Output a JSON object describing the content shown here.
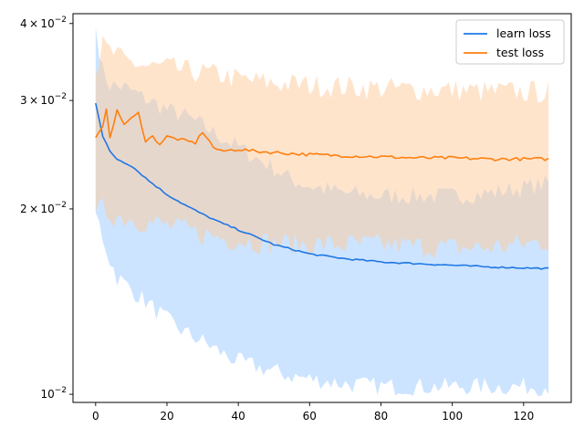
{
  "chart_data": {
    "type": "line",
    "title": "",
    "xlabel": "",
    "ylabel": "",
    "x_range": [
      0,
      127
    ],
    "xlim": [
      -6.35,
      133.35
    ],
    "ylim": [
      0.0097,
      0.0415
    ],
    "y_scale": "log",
    "grid": false,
    "legend_placement": "top-right",
    "x_ticks": [
      0,
      20,
      40,
      60,
      80,
      100,
      120
    ],
    "y_ticks": [
      {
        "value": 0.04,
        "mantissa": "4",
        "exponent": "−2"
      },
      {
        "value": 0.03,
        "mantissa": "3",
        "exponent": "−2"
      },
      {
        "value": 0.02,
        "mantissa": "2",
        "exponent": "−2"
      },
      {
        "value": 0.01,
        "mantissa": "",
        "exponent": "−2"
      }
    ],
    "tick_base": "10",
    "tick_times": "×",
    "series": [
      {
        "name": "learn loss",
        "color": "#1f77e4",
        "band_color": "#99c9ff",
        "mean_knots": [
          [
            0,
            0.0297
          ],
          [
            2,
            0.0262
          ],
          [
            4,
            0.0248
          ],
          [
            6,
            0.0241
          ],
          [
            10,
            0.0235
          ],
          [
            15,
            0.0222
          ],
          [
            20,
            0.0211
          ],
          [
            25,
            0.0203
          ],
          [
            30,
            0.0196
          ],
          [
            35,
            0.019
          ],
          [
            40,
            0.0185
          ],
          [
            45,
            0.018
          ],
          [
            50,
            0.0175
          ],
          [
            55,
            0.0172
          ],
          [
            60,
            0.0169
          ],
          [
            70,
            0.0166
          ],
          [
            80,
            0.0164
          ],
          [
            90,
            0.0163
          ],
          [
            100,
            0.0162
          ],
          [
            110,
            0.0161
          ],
          [
            127,
            0.016
          ]
        ],
        "upper_knots": [
          [
            0,
            0.0395
          ],
          [
            2,
            0.0335
          ],
          [
            4,
            0.0318
          ],
          [
            8,
            0.0315
          ],
          [
            15,
            0.03
          ],
          [
            20,
            0.029
          ],
          [
            25,
            0.0283
          ],
          [
            30,
            0.0273
          ],
          [
            35,
            0.0262
          ],
          [
            40,
            0.0252
          ],
          [
            45,
            0.0242
          ],
          [
            50,
            0.0233
          ],
          [
            55,
            0.0223
          ],
          [
            60,
            0.0218
          ],
          [
            70,
            0.0212
          ],
          [
            80,
            0.021
          ],
          [
            90,
            0.021
          ],
          [
            100,
            0.021
          ],
          [
            110,
            0.0212
          ],
          [
            127,
            0.022
          ]
        ],
        "lower_knots": [
          [
            0,
            0.0197
          ],
          [
            2,
            0.018
          ],
          [
            4,
            0.0165
          ],
          [
            6,
            0.0155
          ],
          [
            10,
            0.0148
          ],
          [
            15,
            0.014
          ],
          [
            20,
            0.0132
          ],
          [
            25,
            0.0126
          ],
          [
            30,
            0.0122
          ],
          [
            35,
            0.0117
          ],
          [
            40,
            0.0113
          ],
          [
            45,
            0.0111
          ],
          [
            50,
            0.0109
          ],
          [
            55,
            0.0107
          ],
          [
            60,
            0.0106
          ],
          [
            70,
            0.0104
          ],
          [
            80,
            0.0103
          ],
          [
            90,
            0.0103
          ],
          [
            100,
            0.0103
          ],
          [
            110,
            0.0103
          ],
          [
            127,
            0.0103
          ]
        ]
      },
      {
        "name": "test loss",
        "color": "#ff7f0e",
        "band_color": "#ffc99a",
        "mean_knots": [
          [
            0,
            0.0261
          ],
          [
            2,
            0.0271
          ],
          [
            3,
            0.0292
          ],
          [
            4,
            0.0262
          ],
          [
            6,
            0.0288
          ],
          [
            8,
            0.0275
          ],
          [
            10,
            0.028
          ],
          [
            12,
            0.0286
          ],
          [
            14,
            0.0258
          ],
          [
            16,
            0.0262
          ],
          [
            18,
            0.0255
          ],
          [
            20,
            0.0262
          ],
          [
            25,
            0.0258
          ],
          [
            28,
            0.0256
          ],
          [
            30,
            0.0267
          ],
          [
            33,
            0.0252
          ],
          [
            35,
            0.0248
          ],
          [
            40,
            0.025
          ],
          [
            45,
            0.0248
          ],
          [
            50,
            0.0247
          ],
          [
            60,
            0.0245
          ],
          [
            70,
            0.0244
          ],
          [
            80,
            0.0243
          ],
          [
            90,
            0.0242
          ],
          [
            100,
            0.0242
          ],
          [
            110,
            0.0241
          ],
          [
            127,
            0.0241
          ]
        ],
        "upper_knots": [
          [
            0,
            0.033
          ],
          [
            2,
            0.0368
          ],
          [
            4,
            0.036
          ],
          [
            8,
            0.0348
          ],
          [
            15,
            0.034
          ],
          [
            20,
            0.034
          ],
          [
            25,
            0.0335
          ],
          [
            30,
            0.0333
          ],
          [
            35,
            0.033
          ],
          [
            40,
            0.0325
          ],
          [
            50,
            0.032
          ],
          [
            60,
            0.0318
          ],
          [
            70,
            0.0316
          ],
          [
            80,
            0.0314
          ],
          [
            90,
            0.0313
          ],
          [
            100,
            0.0312
          ],
          [
            110,
            0.031
          ],
          [
            127,
            0.031
          ]
        ],
        "lower_knots": [
          [
            0,
            0.0198
          ],
          [
            2,
            0.02
          ],
          [
            5,
            0.0195
          ],
          [
            10,
            0.0193
          ],
          [
            15,
            0.019
          ],
          [
            20,
            0.0188
          ],
          [
            25,
            0.0185
          ],
          [
            30,
            0.0182
          ],
          [
            35,
            0.018
          ],
          [
            40,
            0.0178
          ],
          [
            45,
            0.0177
          ],
          [
            50,
            0.0176
          ],
          [
            60,
            0.0175
          ],
          [
            70,
            0.0175
          ],
          [
            80,
            0.0175
          ],
          [
            90,
            0.0174
          ],
          [
            100,
            0.0173
          ],
          [
            110,
            0.0173
          ],
          [
            127,
            0.0177
          ]
        ]
      }
    ]
  }
}
